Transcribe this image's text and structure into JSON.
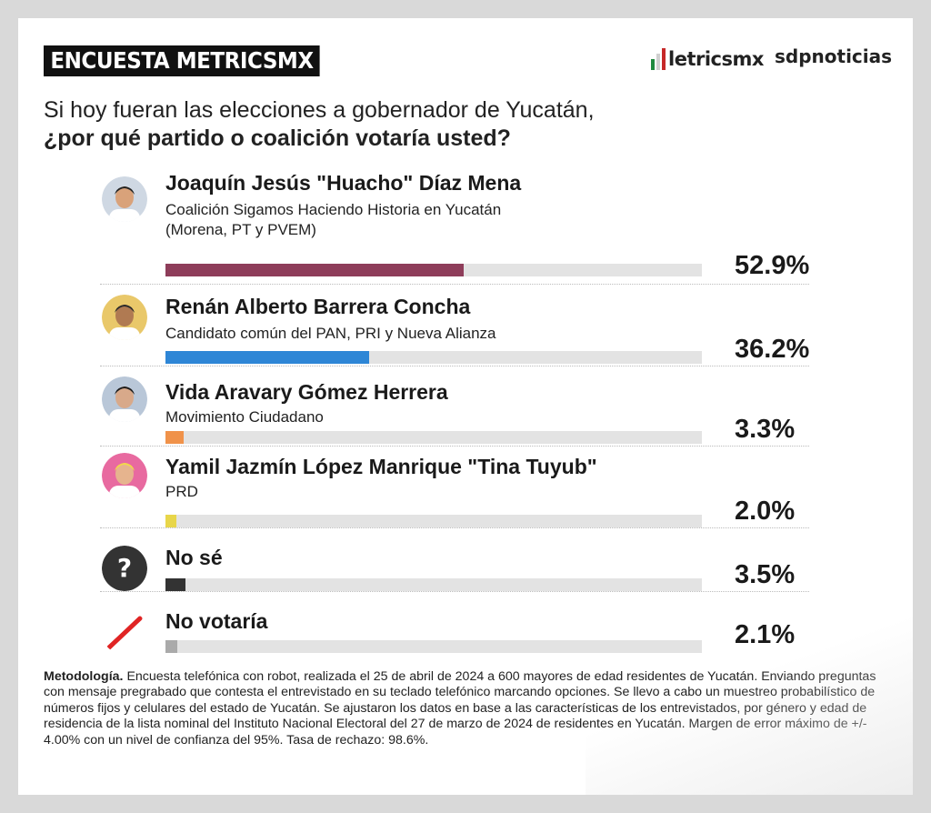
{
  "header": {
    "badge": "ENCUESTA METRICSMX",
    "logo_metrics": "letricsmx",
    "logo_sdp": "sdpnoticias"
  },
  "question": {
    "line1": "Si hoy fueran las elecciones a gobernador de Yucatán,",
    "line2": "¿por qué partido o coalición votaría usted?"
  },
  "chart_data": {
    "type": "bar",
    "orientation": "horizontal",
    "xlim": [
      0,
      100
    ],
    "series": [
      {
        "name": "Joaquín Jesús \"Huacho\" Díaz Mena",
        "sub1": "Coalición Sigamos Haciendo Historia en Yucatán",
        "sub2": "(Morena, PT y PVEM)",
        "value": 52.9,
        "label": "52.9%",
        "color": "#8e3d5a",
        "icon": "candidate-photo-icon"
      },
      {
        "name": "Renán Alberto Barrera Concha",
        "sub1": "Candidato común del PAN, PRI y Nueva Alianza",
        "value": 36.2,
        "label": "36.2%",
        "color": "#2e86d6",
        "icon": "candidate-photo-icon"
      },
      {
        "name": "Vida Aravary Gómez Herrera",
        "sub1": "Movimiento Ciudadano",
        "value": 3.3,
        "label": "3.3%",
        "color": "#f0924a",
        "icon": "candidate-photo-icon"
      },
      {
        "name": "Yamil Jazmín López Manrique \"Tina Tuyub\"",
        "sub1": "PRD",
        "value": 2.0,
        "label": "2.0%",
        "color": "#e8d64a",
        "icon": "candidate-photo-icon"
      },
      {
        "name": "No sé",
        "value": 3.5,
        "label": "3.5%",
        "color": "#333333",
        "icon": "question-mark-icon"
      },
      {
        "name": "No votaría",
        "value": 2.1,
        "label": "2.1%",
        "color": "#aaaaaa",
        "icon": "slash-icon"
      }
    ]
  },
  "methodology": {
    "label": "Metodología.",
    "text": "Encuesta telefónica con robot, realizada el 25 de abril de 2024 a 600 mayores de edad residentes de Yucatán. Enviando preguntas con mensaje pregrabado que contesta el entrevistado en su teclado telefónico marcando opciones. Se llevo a cabo un muestreo probabilístico de números fijos y celulares del estado de Yucatán. Se ajustaron los datos en base a las características de los entrevistados, por género y edad de residencia de la lista nominal del Instituto Nacional Electoral del 27 de marzo de 2024 de residentes en Yucatán. Margen de error máximo de +/- 4.00% con un nivel de confianza del 95%. Tasa de rechazo: 98.6%."
  }
}
